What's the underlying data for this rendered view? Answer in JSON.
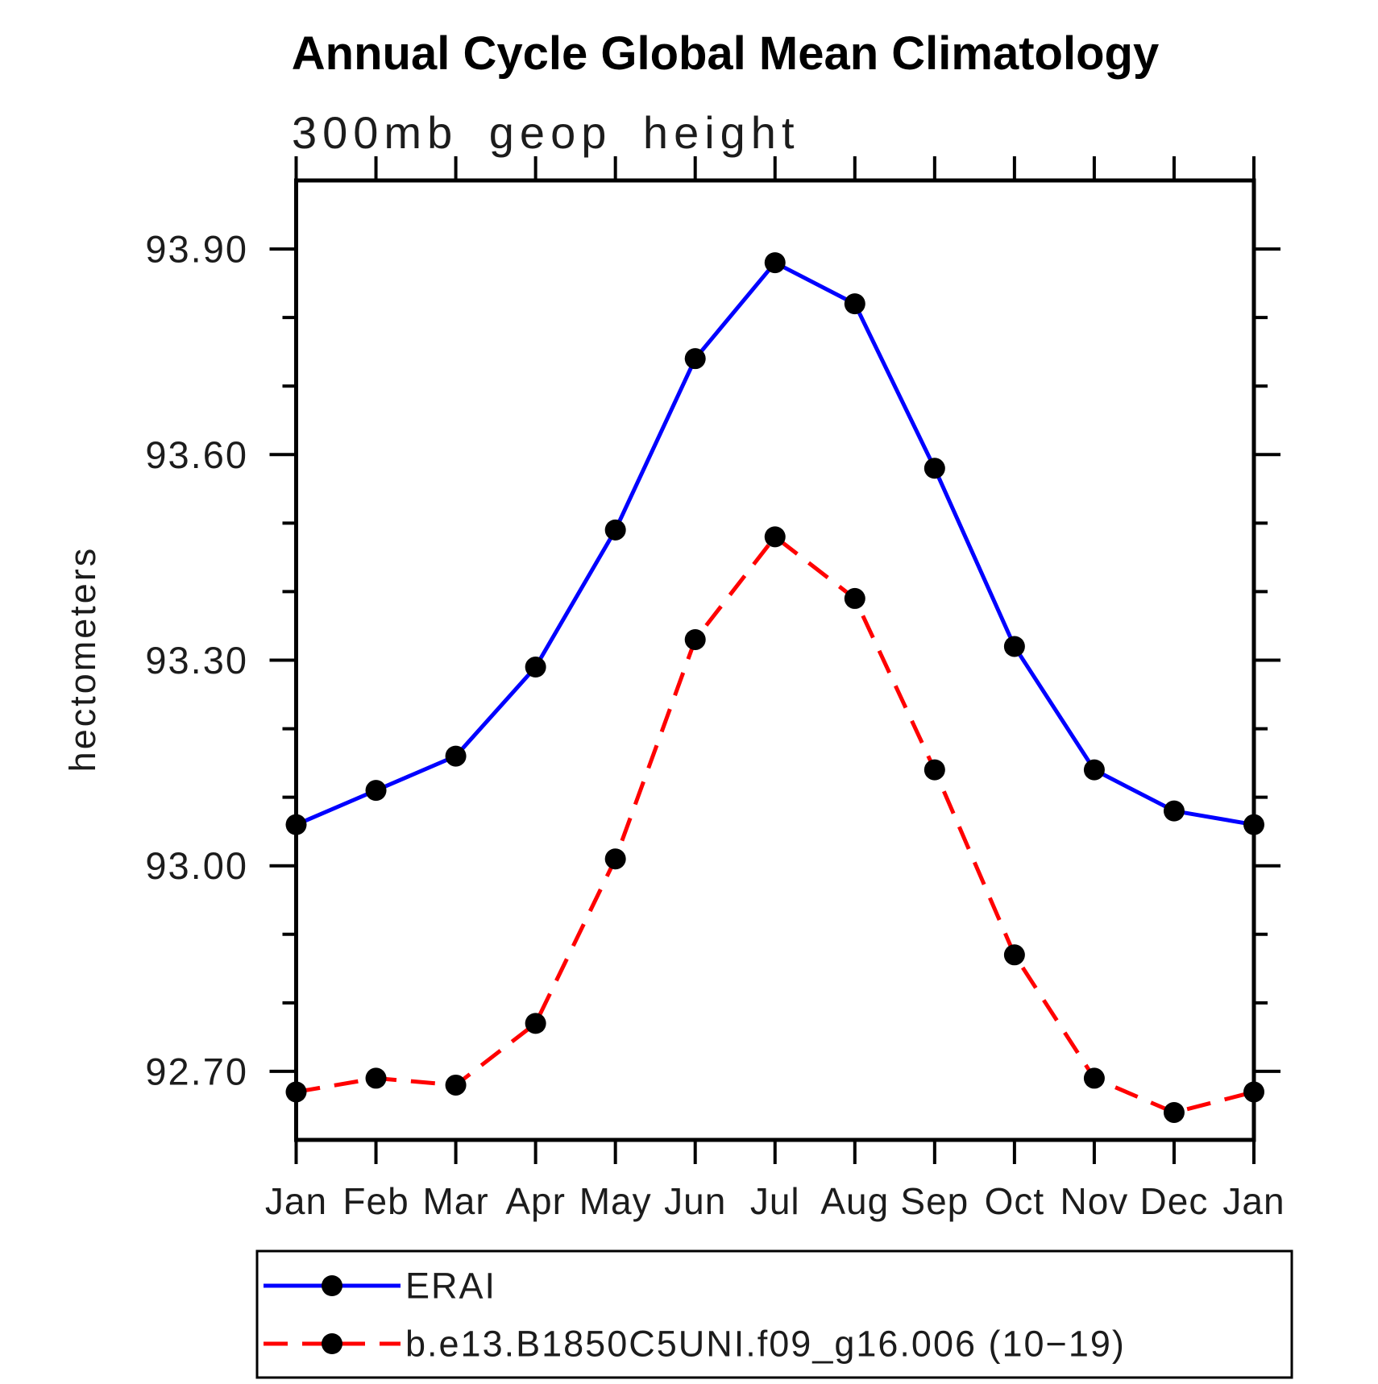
{
  "chart_data": {
    "type": "line",
    "title": "Annual Cycle Global Mean Climatology",
    "subtitle": "300mb geop height",
    "ylabel": "hectometers",
    "x_categories": [
      "Jan",
      "Feb",
      "Mar",
      "Apr",
      "May",
      "Jun",
      "Jul",
      "Aug",
      "Sep",
      "Oct",
      "Nov",
      "Dec",
      "Jan"
    ],
    "ylim": [
      92.6,
      94.0
    ],
    "ytick_labels": [
      "92.70",
      "93.00",
      "93.30",
      "93.60",
      "93.90"
    ],
    "ytick_major_step": 0.3,
    "ytick_minor_step": 0.1,
    "grid": false,
    "legend_position": "bottom",
    "marker_color": "#000000",
    "axis_color": "#000000",
    "series": [
      {
        "name": "ERAI",
        "color": "#0000ff",
        "style": "solid",
        "marker": "filled-circle",
        "values": [
          93.06,
          93.11,
          93.16,
          93.29,
          93.49,
          93.74,
          93.88,
          93.82,
          93.58,
          93.32,
          93.14,
          93.08,
          93.06
        ]
      },
      {
        "name": "b.e13.B1850C5UNI.f09_g16.006 (10−19)",
        "color": "#ff0000",
        "style": "dashed",
        "marker": "filled-circle",
        "values": [
          92.67,
          92.69,
          92.68,
          92.77,
          93.01,
          93.33,
          93.48,
          93.39,
          93.14,
          92.87,
          92.69,
          92.64,
          92.67
        ]
      }
    ]
  }
}
